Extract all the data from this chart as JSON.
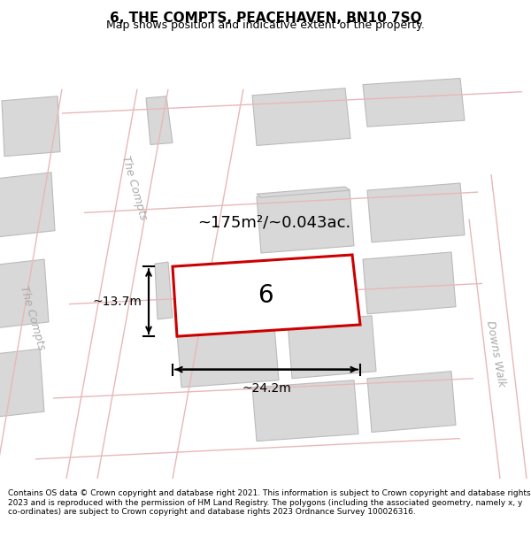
{
  "title": "6, THE COMPTS, PEACEHAVEN, BN10 7SQ",
  "subtitle": "Map shows position and indicative extent of the property.",
  "footer": "Contains OS data © Crown copyright and database right 2021. This information is subject to Crown copyright and database rights 2023 and is reproduced with the permission of HM Land Registry. The polygons (including the associated geometry, namely x, y co-ordinates) are subject to Crown copyright and database rights 2023 Ordnance Survey 100026316.",
  "bg_color": "#ffffff",
  "map_bg": "#ffffff",
  "road_color": "#e8b8b8",
  "block_color": "#d8d8d8",
  "block_edge_color": "#bbbbbb",
  "highlight_color": "#cc0000",
  "area_text": "~175m²/~0.043ac.",
  "label": "6",
  "dim_width": "~24.2m",
  "dim_height": "~13.7m",
  "street_label1": "The Compts",
  "street_label2": "The Compts",
  "street_label3": "Downs Walk",
  "title_fontsize": 11,
  "subtitle_fontsize": 9,
  "footer_fontsize": 6.5
}
